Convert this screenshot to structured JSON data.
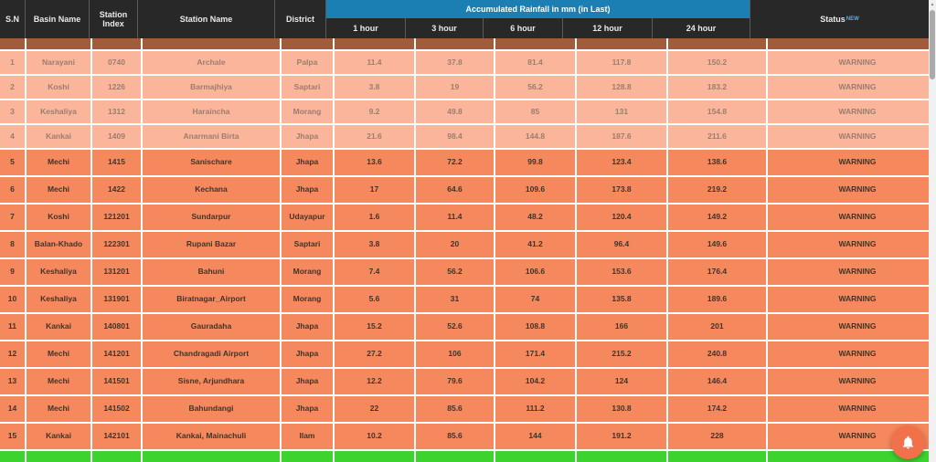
{
  "table": {
    "columns": [
      "S.N",
      "Basin Name",
      "Station Index",
      "Station Name",
      "District"
    ],
    "rain_group_label": "Accumulated Rainfall in mm (in Last)",
    "rain_columns": [
      "1 hour",
      "3 hour",
      "6 hour",
      "12 hour",
      "24 hour"
    ],
    "status_label": "Status",
    "status_superscript": "NEW",
    "rows": [
      {
        "sn": "1",
        "basin": "Narayani",
        "index": "0740",
        "name": "Archale",
        "district": "Palpa",
        "h1": "11.4",
        "h3": "37.8",
        "h6": "81.4",
        "h12": "117.8",
        "h24": "150.2",
        "status": "WARNING",
        "tone": "light"
      },
      {
        "sn": "2",
        "basin": "Koshi",
        "index": "1226",
        "name": "Barmajhiya",
        "district": "Saptari",
        "h1": "3.8",
        "h3": "19",
        "h6": "56.2",
        "h12": "128.8",
        "h24": "183.2",
        "status": "WARNING",
        "tone": "light"
      },
      {
        "sn": "3",
        "basin": "Keshaliya",
        "index": "1312",
        "name": "Haraincha",
        "district": "Morang",
        "h1": "9.2",
        "h3": "49.8",
        "h6": "85",
        "h12": "131",
        "h24": "154.8",
        "status": "WARNING",
        "tone": "light"
      },
      {
        "sn": "4",
        "basin": "Kankai",
        "index": "1409",
        "name": "Anarmani Birta",
        "district": "Jhapa",
        "h1": "21.6",
        "h3": "98.4",
        "h6": "144.8",
        "h12": "187.6",
        "h24": "211.6",
        "status": "WARNING",
        "tone": "light"
      },
      {
        "sn": "5",
        "basin": "Mechi",
        "index": "1415",
        "name": "Sanischare",
        "district": "Jhapa",
        "h1": "13.6",
        "h3": "72.2",
        "h6": "99.8",
        "h12": "123.4",
        "h24": "138.6",
        "status": "WARNING",
        "tone": "dark"
      },
      {
        "sn": "6",
        "basin": "Mechi",
        "index": "1422",
        "name": "Kechana",
        "district": "Jhapa",
        "h1": "17",
        "h3": "64.6",
        "h6": "109.6",
        "h12": "173.8",
        "h24": "219.2",
        "status": "WARNING",
        "tone": "dark"
      },
      {
        "sn": "7",
        "basin": "Koshi",
        "index": "121201",
        "name": "Sundarpur",
        "district": "Udayapur",
        "h1": "1.6",
        "h3": "11.4",
        "h6": "48.2",
        "h12": "120.4",
        "h24": "149.2",
        "status": "WARNING",
        "tone": "dark"
      },
      {
        "sn": "8",
        "basin": "Balan-Khado",
        "index": "122301",
        "name": "Rupani Bazar",
        "district": "Saptari",
        "h1": "3.8",
        "h3": "20",
        "h6": "41.2",
        "h12": "96.4",
        "h24": "149.6",
        "status": "WARNING",
        "tone": "dark"
      },
      {
        "sn": "9",
        "basin": "Keshaliya",
        "index": "131201",
        "name": "Bahuni",
        "district": "Morang",
        "h1": "7.4",
        "h3": "56.2",
        "h6": "106.6",
        "h12": "153.6",
        "h24": "176.4",
        "status": "WARNING",
        "tone": "dark"
      },
      {
        "sn": "10",
        "basin": "Keshaliya",
        "index": "131901",
        "name": "Biratnagar_Airport",
        "district": "Morang",
        "h1": "5.6",
        "h3": "31",
        "h6": "74",
        "h12": "135.8",
        "h24": "189.6",
        "status": "WARNING",
        "tone": "dark"
      },
      {
        "sn": "11",
        "basin": "Kankai",
        "index": "140801",
        "name": "Gauradaha",
        "district": "Jhapa",
        "h1": "15.2",
        "h3": "52.6",
        "h6": "108.8",
        "h12": "166",
        "h24": "201",
        "status": "WARNING",
        "tone": "dark"
      },
      {
        "sn": "12",
        "basin": "Mechi",
        "index": "141201",
        "name": "Chandragadi Airport",
        "district": "Jhapa",
        "h1": "27.2",
        "h3": "106",
        "h6": "171.4",
        "h12": "215.2",
        "h24": "240.8",
        "status": "WARNING",
        "tone": "dark"
      },
      {
        "sn": "13",
        "basin": "Mechi",
        "index": "141501",
        "name": "Sisne, Arjundhara",
        "district": "Jhapa",
        "h1": "12.2",
        "h3": "79.6",
        "h6": "104.2",
        "h12": "124",
        "h24": "146.4",
        "status": "WARNING",
        "tone": "dark"
      },
      {
        "sn": "14",
        "basin": "Mechi",
        "index": "141502",
        "name": "Bahundangi",
        "district": "Jhapa",
        "h1": "22",
        "h3": "85.6",
        "h6": "111.2",
        "h12": "130.8",
        "h24": "174.2",
        "status": "WARNING",
        "tone": "dark"
      },
      {
        "sn": "15",
        "basin": "Kankai",
        "index": "142101",
        "name": "Kankai, Mainachuli",
        "district": "Ilam",
        "h1": "10.2",
        "h3": "85.6",
        "h6": "144",
        "h12": "191.2",
        "h24": "228",
        "status": "WARNING",
        "tone": "dark"
      }
    ]
  },
  "colors": {
    "header_bg": "#282828",
    "rain_group_bg": "#1b7fb4",
    "row_light_bg": "#fbb59b",
    "row_dark_bg": "#f5885c",
    "partial_top_bg": "#a05c3b",
    "partial_bottom_bg": "#3dd32e",
    "fab_bg": "#f1714b"
  },
  "fab": {
    "icon": "bell-icon"
  },
  "scrollbar": {
    "up_arrow": "▲"
  }
}
